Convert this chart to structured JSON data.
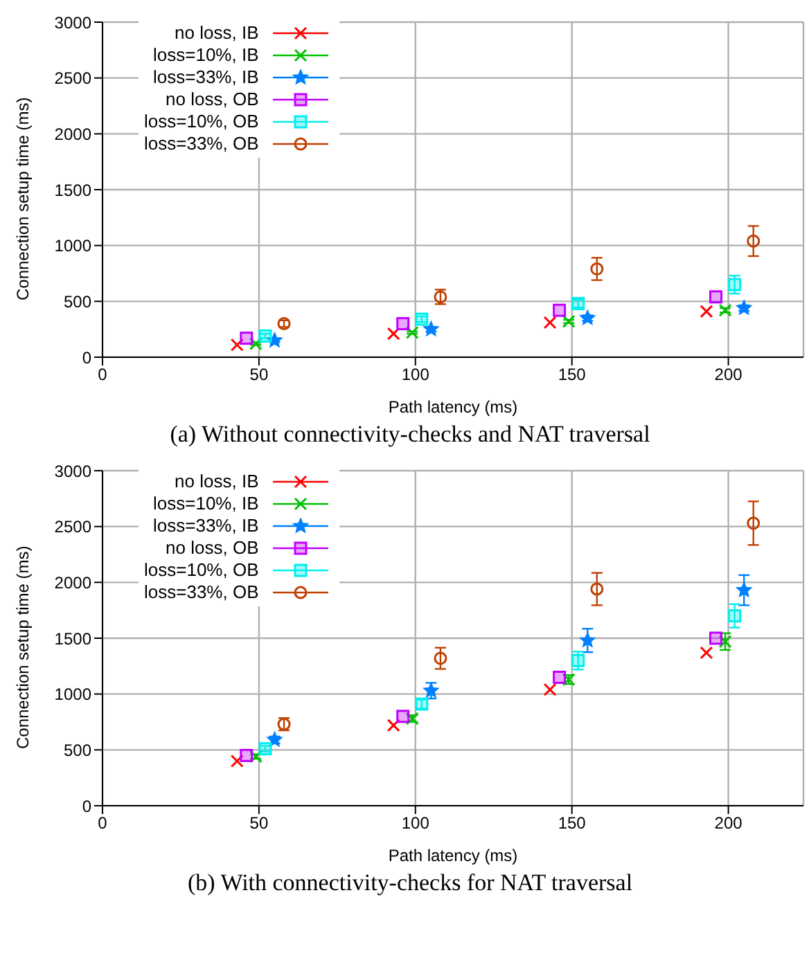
{
  "chart_data": [
    {
      "type": "scatter",
      "title": "(a) Without connectivity-checks and NAT traversal",
      "xlabel": "Path latency (ms)",
      "ylabel": "Connection setup time (ms)",
      "xlim": [
        0,
        224
      ],
      "xticks": [
        0,
        50,
        100,
        150,
        200
      ],
      "ylim": [
        0,
        3000
      ],
      "yticks": [
        0,
        500,
        1000,
        1500,
        2000,
        2500,
        3000
      ],
      "grid": true,
      "legend": "top left",
      "series": [
        {
          "name": "no loss, IB",
          "color": "#ff0000",
          "marker": "cross",
          "x": [
            43,
            93,
            143,
            193
          ],
          "values": [
            110,
            210,
            310,
            410
          ]
        },
        {
          "name": "loss=10%, IB",
          "color": "#00c000",
          "marker": "cross",
          "x": [
            49,
            99,
            149,
            199
          ],
          "values": [
            120,
            220,
            320,
            420
          ],
          "errors": [
            10,
            10,
            15,
            20
          ]
        },
        {
          "name": "loss=33%, IB",
          "color": "#0080ff",
          "marker": "star",
          "x": [
            55,
            105,
            155,
            205
          ],
          "values": [
            150,
            250,
            350,
            440
          ],
          "errors": [
            15,
            20,
            25,
            25
          ]
        },
        {
          "name": "no loss, OB",
          "color": "#c000ff",
          "marker": "square",
          "x": [
            46,
            96,
            146,
            196
          ],
          "values": [
            170,
            300,
            420,
            540
          ]
        },
        {
          "name": "loss=10%, OB",
          "color": "#00eeee",
          "marker": "square",
          "x": [
            52,
            102,
            152,
            202
          ],
          "values": [
            190,
            340,
            480,
            650
          ],
          "errors": [
            20,
            25,
            35,
            80
          ]
        },
        {
          "name": "loss=33%, OB",
          "color": "#c04000",
          "marker": "circle",
          "x": [
            58,
            108,
            158,
            208
          ],
          "values": [
            300,
            540,
            790,
            1040
          ],
          "errors": [
            30,
            65,
            100,
            135
          ]
        }
      ]
    },
    {
      "type": "scatter",
      "title": "(b) With connectivity-checks for NAT traversal",
      "xlabel": "Path latency (ms)",
      "ylabel": "Connection setup time (ms)",
      "xlim": [
        0,
        224
      ],
      "xticks": [
        0,
        50,
        100,
        150,
        200
      ],
      "ylim": [
        0,
        3000
      ],
      "yticks": [
        0,
        500,
        1000,
        1500,
        2000,
        2500,
        3000
      ],
      "grid": true,
      "legend": "top left",
      "series": [
        {
          "name": "no loss, IB",
          "color": "#ff0000",
          "marker": "cross",
          "x": [
            43,
            93,
            143,
            193
          ],
          "values": [
            400,
            720,
            1040,
            1370
          ]
        },
        {
          "name": "loss=10%, IB",
          "color": "#00c000",
          "marker": "cross",
          "x": [
            49,
            99,
            149,
            199
          ],
          "values": [
            440,
            780,
            1130,
            1470
          ],
          "errors": [
            20,
            30,
            40,
            75
          ]
        },
        {
          "name": "loss=33%, IB",
          "color": "#0080ff",
          "marker": "star",
          "x": [
            55,
            105,
            155,
            205
          ],
          "values": [
            590,
            1030,
            1480,
            1930
          ],
          "errors": [
            30,
            70,
            105,
            135
          ]
        },
        {
          "name": "no loss, OB",
          "color": "#c000ff",
          "marker": "square",
          "x": [
            46,
            96,
            146,
            196
          ],
          "values": [
            450,
            800,
            1150,
            1500
          ]
        },
        {
          "name": "loss=10%, OB",
          "color": "#00eeee",
          "marker": "square",
          "x": [
            52,
            102,
            152,
            202
          ],
          "values": [
            510,
            910,
            1300,
            1700
          ],
          "errors": [
            25,
            40,
            80,
            105
          ]
        },
        {
          "name": "loss=33%, OB",
          "color": "#c04000",
          "marker": "circle",
          "x": [
            58,
            108,
            158,
            208
          ],
          "values": [
            730,
            1320,
            1940,
            2530
          ],
          "errors": [
            55,
            95,
            145,
            195
          ]
        }
      ]
    }
  ]
}
